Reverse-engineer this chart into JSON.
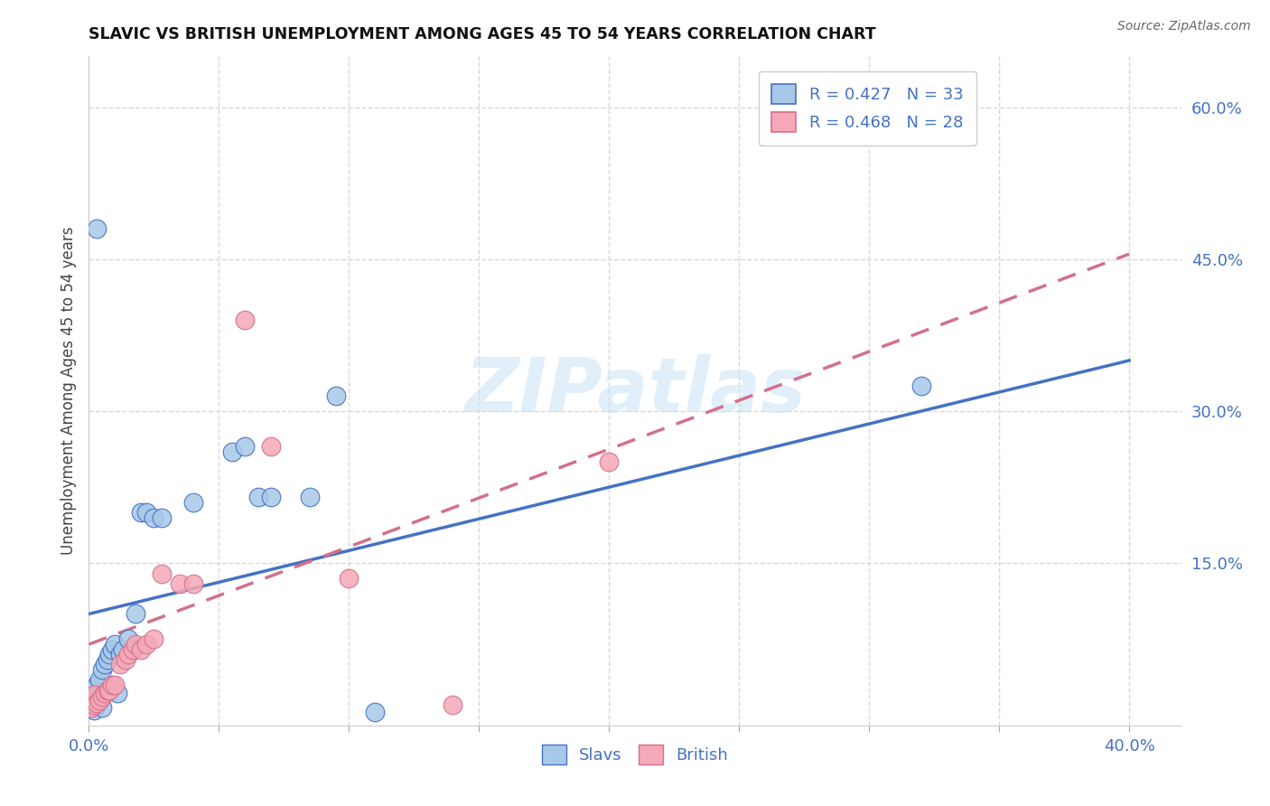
{
  "title": "SLAVIC VS BRITISH UNEMPLOYMENT AMONG AGES 45 TO 54 YEARS CORRELATION CHART",
  "source": "Source: ZipAtlas.com",
  "ylabel": "Unemployment Among Ages 45 to 54 years",
  "xlim": [
    0.0,
    0.42
  ],
  "ylim": [
    -0.01,
    0.65
  ],
  "xtick_positions": [
    0.0,
    0.05,
    0.1,
    0.15,
    0.2,
    0.25,
    0.3,
    0.35,
    0.4
  ],
  "xtick_labels": [
    "0.0%",
    "",
    "",
    "",
    "",
    "",
    "",
    "",
    "40.0%"
  ],
  "ytick_right_positions": [
    0.0,
    0.15,
    0.3,
    0.45,
    0.6
  ],
  "ytick_right_labels": [
    "",
    "15.0%",
    "30.0%",
    "45.0%",
    "60.0%"
  ],
  "slavs_R": 0.427,
  "slavs_N": 33,
  "british_R": 0.468,
  "british_N": 28,
  "slavs_color": "#a8c8e8",
  "british_color": "#f4a8b8",
  "slavs_line_color": "#4472c4",
  "british_line_color": "#d4708a",
  "legend_text_color": "#4472c4",
  "slavs_x": [
    0.001,
    0.001,
    0.002,
    0.002,
    0.003,
    0.003,
    0.004,
    0.005,
    0.005,
    0.006,
    0.007,
    0.008,
    0.009,
    0.01,
    0.011,
    0.012,
    0.013,
    0.015,
    0.018,
    0.02,
    0.022,
    0.025,
    0.028,
    0.04,
    0.055,
    0.06,
    0.065,
    0.07,
    0.085,
    0.095,
    0.11,
    0.32,
    0.003
  ],
  "slavs_y": [
    0.01,
    0.025,
    0.005,
    0.015,
    0.01,
    0.03,
    0.035,
    0.008,
    0.045,
    0.05,
    0.055,
    0.06,
    0.065,
    0.07,
    0.022,
    0.06,
    0.065,
    0.075,
    0.1,
    0.2,
    0.2,
    0.195,
    0.195,
    0.21,
    0.26,
    0.265,
    0.215,
    0.215,
    0.215,
    0.315,
    0.003,
    0.325,
    0.48
  ],
  "british_x": [
    0.001,
    0.001,
    0.002,
    0.002,
    0.003,
    0.004,
    0.005,
    0.006,
    0.007,
    0.008,
    0.009,
    0.01,
    0.012,
    0.014,
    0.015,
    0.017,
    0.018,
    0.02,
    0.022,
    0.025,
    0.028,
    0.035,
    0.04,
    0.06,
    0.07,
    0.1,
    0.14,
    0.2
  ],
  "british_y": [
    0.008,
    0.015,
    0.01,
    0.02,
    0.012,
    0.015,
    0.018,
    0.022,
    0.025,
    0.025,
    0.03,
    0.03,
    0.05,
    0.055,
    0.06,
    0.065,
    0.07,
    0.065,
    0.07,
    0.075,
    0.14,
    0.13,
    0.13,
    0.39,
    0.265,
    0.135,
    0.01,
    0.25
  ],
  "watermark": "ZIPatlas",
  "background_color": "#ffffff",
  "grid_color": "#d8d8d8"
}
